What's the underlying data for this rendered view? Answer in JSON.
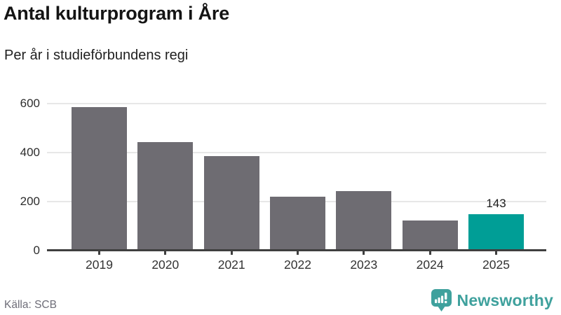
{
  "header": {
    "title": "Antal kulturprogram i Åre",
    "subtitle": "Per år i studieförbundens regi"
  },
  "chart_data": {
    "type": "bar",
    "title": "Antal kulturprogram i Åre",
    "subtitle": "Per år i studieförbundens regi",
    "categories": [
      "2019",
      "2020",
      "2021",
      "2022",
      "2023",
      "2024",
      "2025"
    ],
    "values": [
      580,
      438,
      380,
      213,
      238,
      118,
      143
    ],
    "xlabel": "",
    "ylabel": "",
    "yticks": [
      0,
      200,
      400,
      600
    ],
    "ylim": [
      0,
      600
    ],
    "grid": true,
    "legend": false,
    "highlight_category": "2025",
    "value_label": {
      "category": "2025",
      "text": "143"
    },
    "colors": {
      "bar": "#6e6c72",
      "highlight": "#009e96"
    }
  },
  "footer": {
    "source": "Källa: SCB",
    "brand": "Newsworthy",
    "brand_color": "#3fa19d"
  }
}
